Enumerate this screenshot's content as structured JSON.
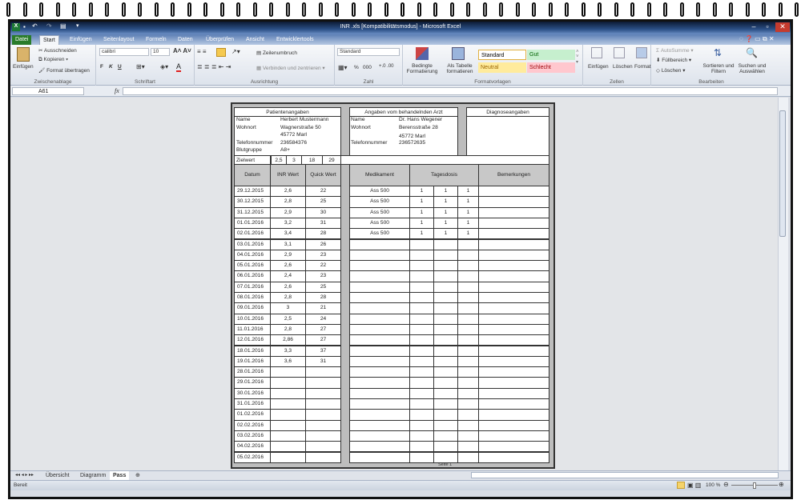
{
  "window": {
    "title": "INR .xls  [Kompatibilitätsmodus]  -  Microsoft Excel"
  },
  "quick_access": [
    "excel-logo",
    "save-icon",
    "undo-icon",
    "redo-icon",
    "customize-icon"
  ],
  "tabs": [
    {
      "label": "Datei",
      "type": "file"
    },
    {
      "label": "Start",
      "active": true
    },
    {
      "label": "Einfügen"
    },
    {
      "label": "Seitenlayout"
    },
    {
      "label": "Formeln"
    },
    {
      "label": "Daten"
    },
    {
      "label": "Überprüfen"
    },
    {
      "label": "Ansicht"
    },
    {
      "label": "Entwicklertools"
    }
  ],
  "ribbon": {
    "clipboard": {
      "label": "Zwischenablage",
      "paste": "Einfügen",
      "cut": "Ausschneiden",
      "copy": "Kopieren",
      "format_painter": "Format übertragen"
    },
    "font": {
      "label": "Schriftart",
      "font_name": "calibri",
      "font_size": "10",
      "bold": "F",
      "italic": "K",
      "underline": "U"
    },
    "alignment": {
      "label": "Ausrichtung",
      "wrap": "Zeilenumbruch",
      "merge": "Verbinden und zentrieren"
    },
    "number": {
      "label": "Zahl",
      "format": "Standard",
      "percent": "%",
      "thousands": "000"
    },
    "styles": {
      "label": "Formatvorlagen",
      "conditional": "Bedingte Formatierung",
      "as_table": "Als Tabelle formatieren",
      "cells": [
        {
          "label": "Standard",
          "bg": "#ffffff",
          "color": "#000000"
        },
        {
          "label": "Gut",
          "bg": "#c6efce",
          "color": "#006100"
        },
        {
          "label": "Neutral",
          "bg": "#ffeb9c",
          "color": "#9c6500"
        },
        {
          "label": "Schlecht",
          "bg": "#ffc7ce",
          "color": "#9c0006"
        }
      ]
    },
    "cells": {
      "label": "Zellen",
      "insert": "Einfügen",
      "delete": "Löschen",
      "format": "Format"
    },
    "editing": {
      "label": "Bearbeiten",
      "autosum": "AutoSumme",
      "fill": "Füllbereich",
      "clear": "Löschen",
      "sort": "Sortieren und Filtern",
      "find": "Suchen und Auswählen"
    }
  },
  "formula_bar": {
    "name_box": "A61",
    "fx": "fx",
    "value": ""
  },
  "sheet": {
    "patient": {
      "title": "Patientenangaben",
      "rows": [
        [
          "Name",
          "Herbert Mustermann"
        ],
        [
          "Wohnort",
          "Wagnerstraße 50"
        ],
        [
          "",
          "45772 Marl"
        ],
        [
          "Telefonnummer",
          "236584376"
        ],
        [
          "Blutgruppe",
          "A8+"
        ]
      ]
    },
    "doctor": {
      "title": "Angaben vom behandelnden Arzt",
      "rows": [
        [
          "Name",
          "Dr. Hans Wegener"
        ],
        [
          "Wohnort",
          "Berensstraße 28"
        ],
        [
          "",
          "45772 Marl"
        ],
        [
          "Telefonnummer",
          "236572635"
        ]
      ]
    },
    "diagnosis": {
      "title": "Diagnoseangaben"
    },
    "target": {
      "label": "Zielwert",
      "values": [
        "2,5",
        "3",
        "18",
        "29"
      ]
    },
    "headers": {
      "date": "Datum",
      "inr": "INR Wert",
      "quick": "Quick Wert",
      "medication": "Medikament",
      "dose": "Tagesdosis",
      "remarks": "Bemerkungen"
    },
    "rows": [
      {
        "date": "29.12.2015",
        "inr": "2,6",
        "quick": "22",
        "med": "Ass 500",
        "d1": "1",
        "d2": "1",
        "d3": "1"
      },
      {
        "date": "30.12.2015",
        "inr": "2,8",
        "quick": "25",
        "med": "Ass 500",
        "d1": "1",
        "d2": "1",
        "d3": "1"
      },
      {
        "date": "31.12.2015",
        "inr": "2,9",
        "quick": "30",
        "med": "Ass 500",
        "d1": "1",
        "d2": "1",
        "d3": "1"
      },
      {
        "date": "01.01.2016",
        "inr": "3,2",
        "quick": "31",
        "med": "Ass 500",
        "d1": "1",
        "d2": "1",
        "d3": "1"
      },
      {
        "date": "02.01.2016",
        "inr": "3,4",
        "quick": "28",
        "med": "Ass 500",
        "d1": "1",
        "d2": "1",
        "d3": "1"
      },
      {
        "date": "03.01.2016",
        "inr": "3,1",
        "quick": "26"
      },
      {
        "date": "04.01.2016",
        "inr": "2,9",
        "quick": "23"
      },
      {
        "date": "05.01.2016",
        "inr": "2,6",
        "quick": "22"
      },
      {
        "date": "06.01.2016",
        "inr": "2,4",
        "quick": "23"
      },
      {
        "date": "07.01.2016",
        "inr": "2,6",
        "quick": "25"
      },
      {
        "date": "08.01.2016",
        "inr": "2,8",
        "quick": "28"
      },
      {
        "date": "09.01.2016",
        "inr": "3",
        "quick": "21"
      },
      {
        "date": "10.01.2016",
        "inr": "2,5",
        "quick": "24"
      },
      {
        "date": "11.01.2016",
        "inr": "2,8",
        "quick": "27"
      },
      {
        "date": "12.01.2016",
        "inr": "2,86",
        "quick": "27"
      },
      {
        "date": "18.01.2016",
        "inr": "3,3",
        "quick": "37"
      },
      {
        "date": "19.01.2016",
        "inr": "3,6",
        "quick": "31"
      },
      {
        "date": "28.01.2016"
      },
      {
        "date": "29.01.2016"
      },
      {
        "date": "30.01.2016"
      },
      {
        "date": "31.01.2016"
      },
      {
        "date": "01.02.2016"
      },
      {
        "date": "02.02.2016"
      },
      {
        "date": "03.02.2016"
      },
      {
        "date": "04.02.2016"
      },
      {
        "date": "05.02.2016"
      }
    ],
    "footer": "Seite 1"
  },
  "sheet_tabs": [
    {
      "label": "Übersicht"
    },
    {
      "label": "Diagramm"
    },
    {
      "label": "Pass",
      "active": true
    }
  ],
  "status": {
    "ready": "Bereit",
    "zoom": "100 %",
    "zoom_level": 100
  }
}
